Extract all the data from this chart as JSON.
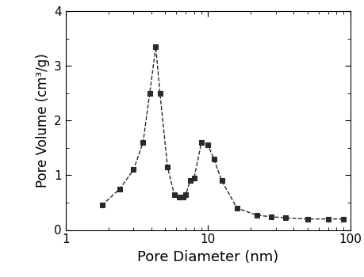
{
  "x": [
    1.8,
    2.4,
    3.0,
    3.5,
    3.9,
    4.3,
    4.6,
    5.2,
    5.8,
    6.3,
    6.7,
    7.0,
    7.5,
    8.0,
    9.0,
    10.0,
    11.0,
    12.5,
    16.0,
    22.0,
    28.0,
    35.0,
    50.0,
    70.0,
    90.0
  ],
  "y": [
    0.45,
    0.75,
    1.1,
    1.6,
    2.5,
    3.35,
    2.5,
    1.15,
    0.65,
    0.6,
    0.6,
    0.65,
    0.9,
    0.95,
    1.6,
    1.55,
    1.3,
    0.9,
    0.4,
    0.27,
    0.24,
    0.22,
    0.2,
    0.2,
    0.2
  ],
  "xlabel": "Pore Diameter (nm)",
  "ylabel": "Pore Volume (cm³/g)",
  "xlim": [
    1,
    100
  ],
  "ylim": [
    0,
    4
  ],
  "yticks": [
    0,
    1,
    2,
    3,
    4
  ],
  "xticks_major": [
    1,
    10,
    100
  ],
  "xtick_labels": [
    "1",
    "10",
    "100"
  ],
  "line_color": "#2a2a2a",
  "marker_color": "#2a2a2a",
  "bg_color": "#ffffff",
  "marker": "s",
  "marker_size": 5,
  "line_width": 1.0,
  "line_style": "--",
  "xlabel_fontsize": 13,
  "ylabel_fontsize": 12,
  "tick_fontsize": 11
}
